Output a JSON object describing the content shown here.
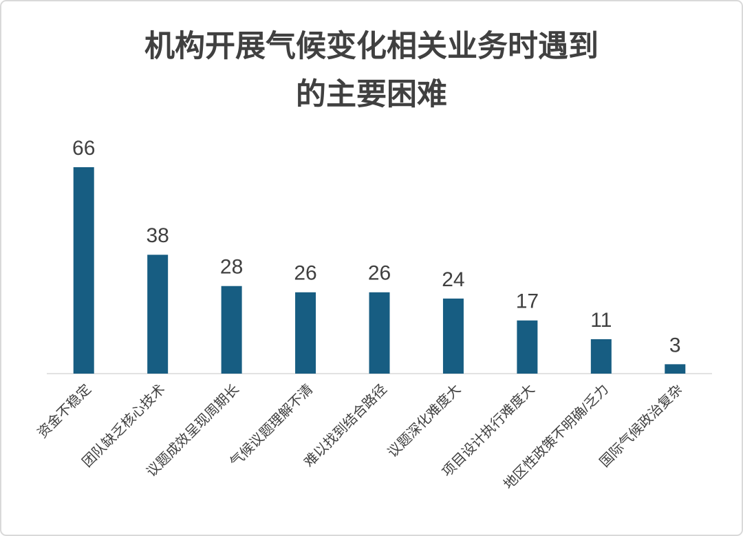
{
  "chart_data": {
    "type": "bar",
    "title": [
      "机构开展气候变化相关业务时遇到",
      "的主要困难"
    ],
    "categories": [
      "资金不稳定",
      "团队缺乏核心技术",
      "议题成效呈现周期长",
      "气候议题理解不清",
      "难以找到结合路径",
      "议题深化难度大",
      "项目设计执行难度大",
      "地区性政策不明确/乏力",
      "国际气候政治复杂"
    ],
    "values": [
      66,
      38,
      28,
      26,
      26,
      24,
      17,
      11,
      3
    ],
    "color": "#175d82"
  }
}
